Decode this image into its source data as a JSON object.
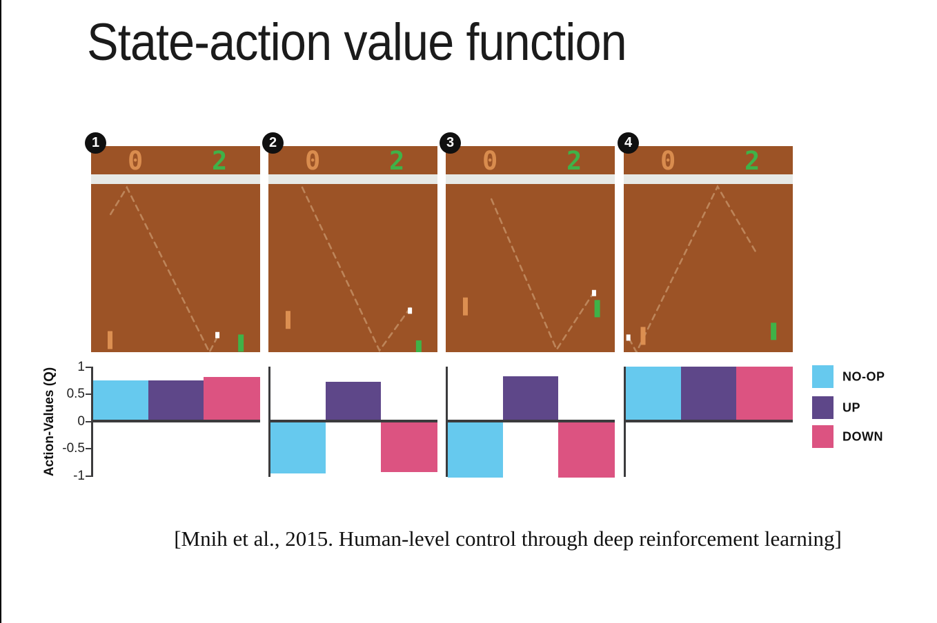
{
  "slide": {
    "title": "State-action value function",
    "citation": "[Mnih et al., 2015. Human-level control through deep reinforcement learning]"
  },
  "colors": {
    "frame_brown": "#9c5326",
    "divider_gray": "#e7e9e6",
    "score_orange": "#d98c4e",
    "score_green": "#3fb248",
    "trajectory_tan": "#c18b60",
    "paddle_orange": "#dc8f51",
    "paddle_green": "#3fb248",
    "ball_white": "#ffffff",
    "noop": "#66c9ee",
    "up": "#5e4789",
    "down": "#dc5381",
    "axis_dark": "#3b3b3d",
    "badge_black": "#101010",
    "badge_text": "#ffffff"
  },
  "frames": [
    {
      "badge": "1",
      "score_left": "0",
      "score_right": "2",
      "trajectory": [
        [
          [
            0.115,
            0.18
          ],
          [
            0.212,
            0.02
          ],
          [
            0.7,
            1.0
          ],
          [
            0.752,
            0.9
          ]
        ]
      ],
      "ball": [
        0.735,
        0.88
      ],
      "left_paddle": [
        0.098,
        0.875
      ],
      "right_paddle": [
        0.87,
        0.895
      ]
    },
    {
      "badge": "2",
      "score_left": "0",
      "score_right": "2",
      "trajectory": [
        [
          [
            0.2,
            0.02
          ],
          [
            0.657,
            0.99
          ],
          [
            0.84,
            0.735
          ]
        ]
      ],
      "ball": [
        0.825,
        0.735
      ],
      "left_paddle": [
        0.102,
        0.755
      ],
      "right_paddle": [
        0.873,
        0.93
      ]
    },
    {
      "badge": "3",
      "score_left": "0",
      "score_right": "2",
      "trajectory": [
        [
          [
            0.27,
            0.09
          ],
          [
            0.656,
            0.985
          ],
          [
            0.875,
            0.645
          ]
        ]
      ],
      "ball": [
        0.865,
        0.63
      ],
      "left_paddle": [
        0.102,
        0.675
      ],
      "right_paddle": [
        0.88,
        0.69
      ]
    },
    {
      "badge": "4",
      "score_left": "0",
      "score_right": "2",
      "trajectory": [
        [
          [
            0.032,
            0.92
          ],
          [
            0.075,
            1.0
          ],
          [
            0.555,
            0.015
          ],
          [
            0.79,
            0.42
          ]
        ]
      ],
      "ball": [
        0.015,
        0.895
      ],
      "left_paddle": [
        0.1,
        0.85
      ],
      "right_paddle": [
        0.87,
        0.825
      ]
    }
  ],
  "chart_data": {
    "type": "bar",
    "title": "",
    "ylabel": "Action-Values (Q)",
    "ylim": [
      -1,
      1
    ],
    "yticks": [
      1,
      0.5,
      0,
      -0.5,
      -1
    ],
    "ytick_labels": [
      "1",
      "0.5",
      "0",
      "-0.5",
      "-1"
    ],
    "grid": false,
    "legend": [
      "NO-OP",
      "UP",
      "DOWN"
    ],
    "legend_position": "right",
    "categories": [
      "NO-OP",
      "UP",
      "DOWN"
    ],
    "panels": [
      {
        "frame": "1",
        "values": {
          "NO-OP": 0.75,
          "UP": 0.75,
          "DOWN": 0.81
        }
      },
      {
        "frame": "2",
        "values": {
          "NO-OP": -0.93,
          "UP": 0.72,
          "DOWN": -0.9
        }
      },
      {
        "frame": "3",
        "values": {
          "NO-OP": -1.0,
          "UP": 0.82,
          "DOWN": -1.0
        }
      },
      {
        "frame": "4",
        "values": {
          "NO-OP": 1.0,
          "UP": 1.0,
          "DOWN": 1.0
        }
      }
    ]
  }
}
